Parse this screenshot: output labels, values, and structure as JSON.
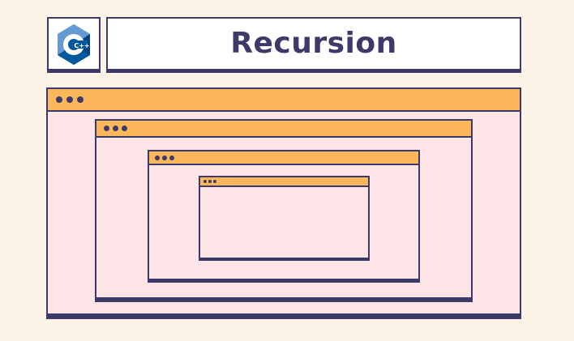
{
  "header": {
    "logo_icon": "cpp-logo-icon",
    "logo_text": "C++",
    "title": "Recursion"
  },
  "colors": {
    "background": "#fdf3e6",
    "outline": "#3d3a6a",
    "window_body": "#fde4e7",
    "title_bar": "#fbb75a",
    "logo_blue_dark": "#00599c",
    "logo_blue_mid": "#004482",
    "logo_blue_light": "#659ad2"
  },
  "diagram": {
    "nested_windows": 4,
    "window_dots_per_bar": 3
  }
}
